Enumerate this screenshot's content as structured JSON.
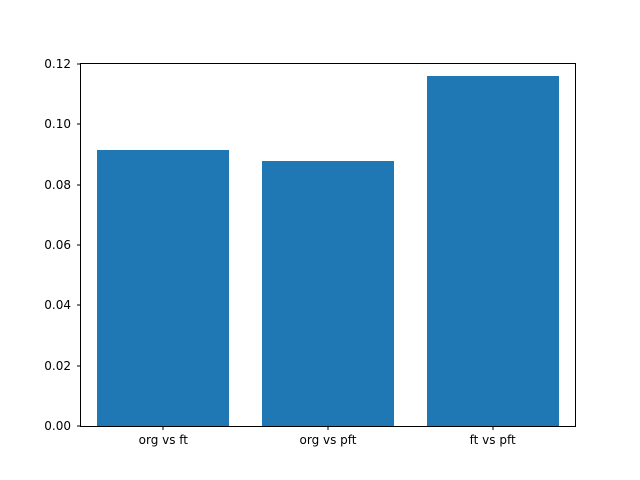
{
  "chart_data": {
    "type": "bar",
    "title": "",
    "xlabel": "",
    "ylabel": "",
    "categories": [
      "org vs ft",
      "org vs pft",
      "ft vs pft"
    ],
    "values": [
      0.0915,
      0.0878,
      0.116
    ],
    "ylim": [
      0.0,
      0.12
    ],
    "yticks": [
      0.0,
      0.02,
      0.04,
      0.06,
      0.08,
      0.1,
      0.12
    ],
    "ytick_labels": [
      "0.00",
      "0.02",
      "0.04",
      "0.06",
      "0.08",
      "0.10",
      "0.12"
    ],
    "grid": false,
    "legend": "none",
    "bar_color": "#1f77b4",
    "bar_width_fraction": 0.8
  }
}
